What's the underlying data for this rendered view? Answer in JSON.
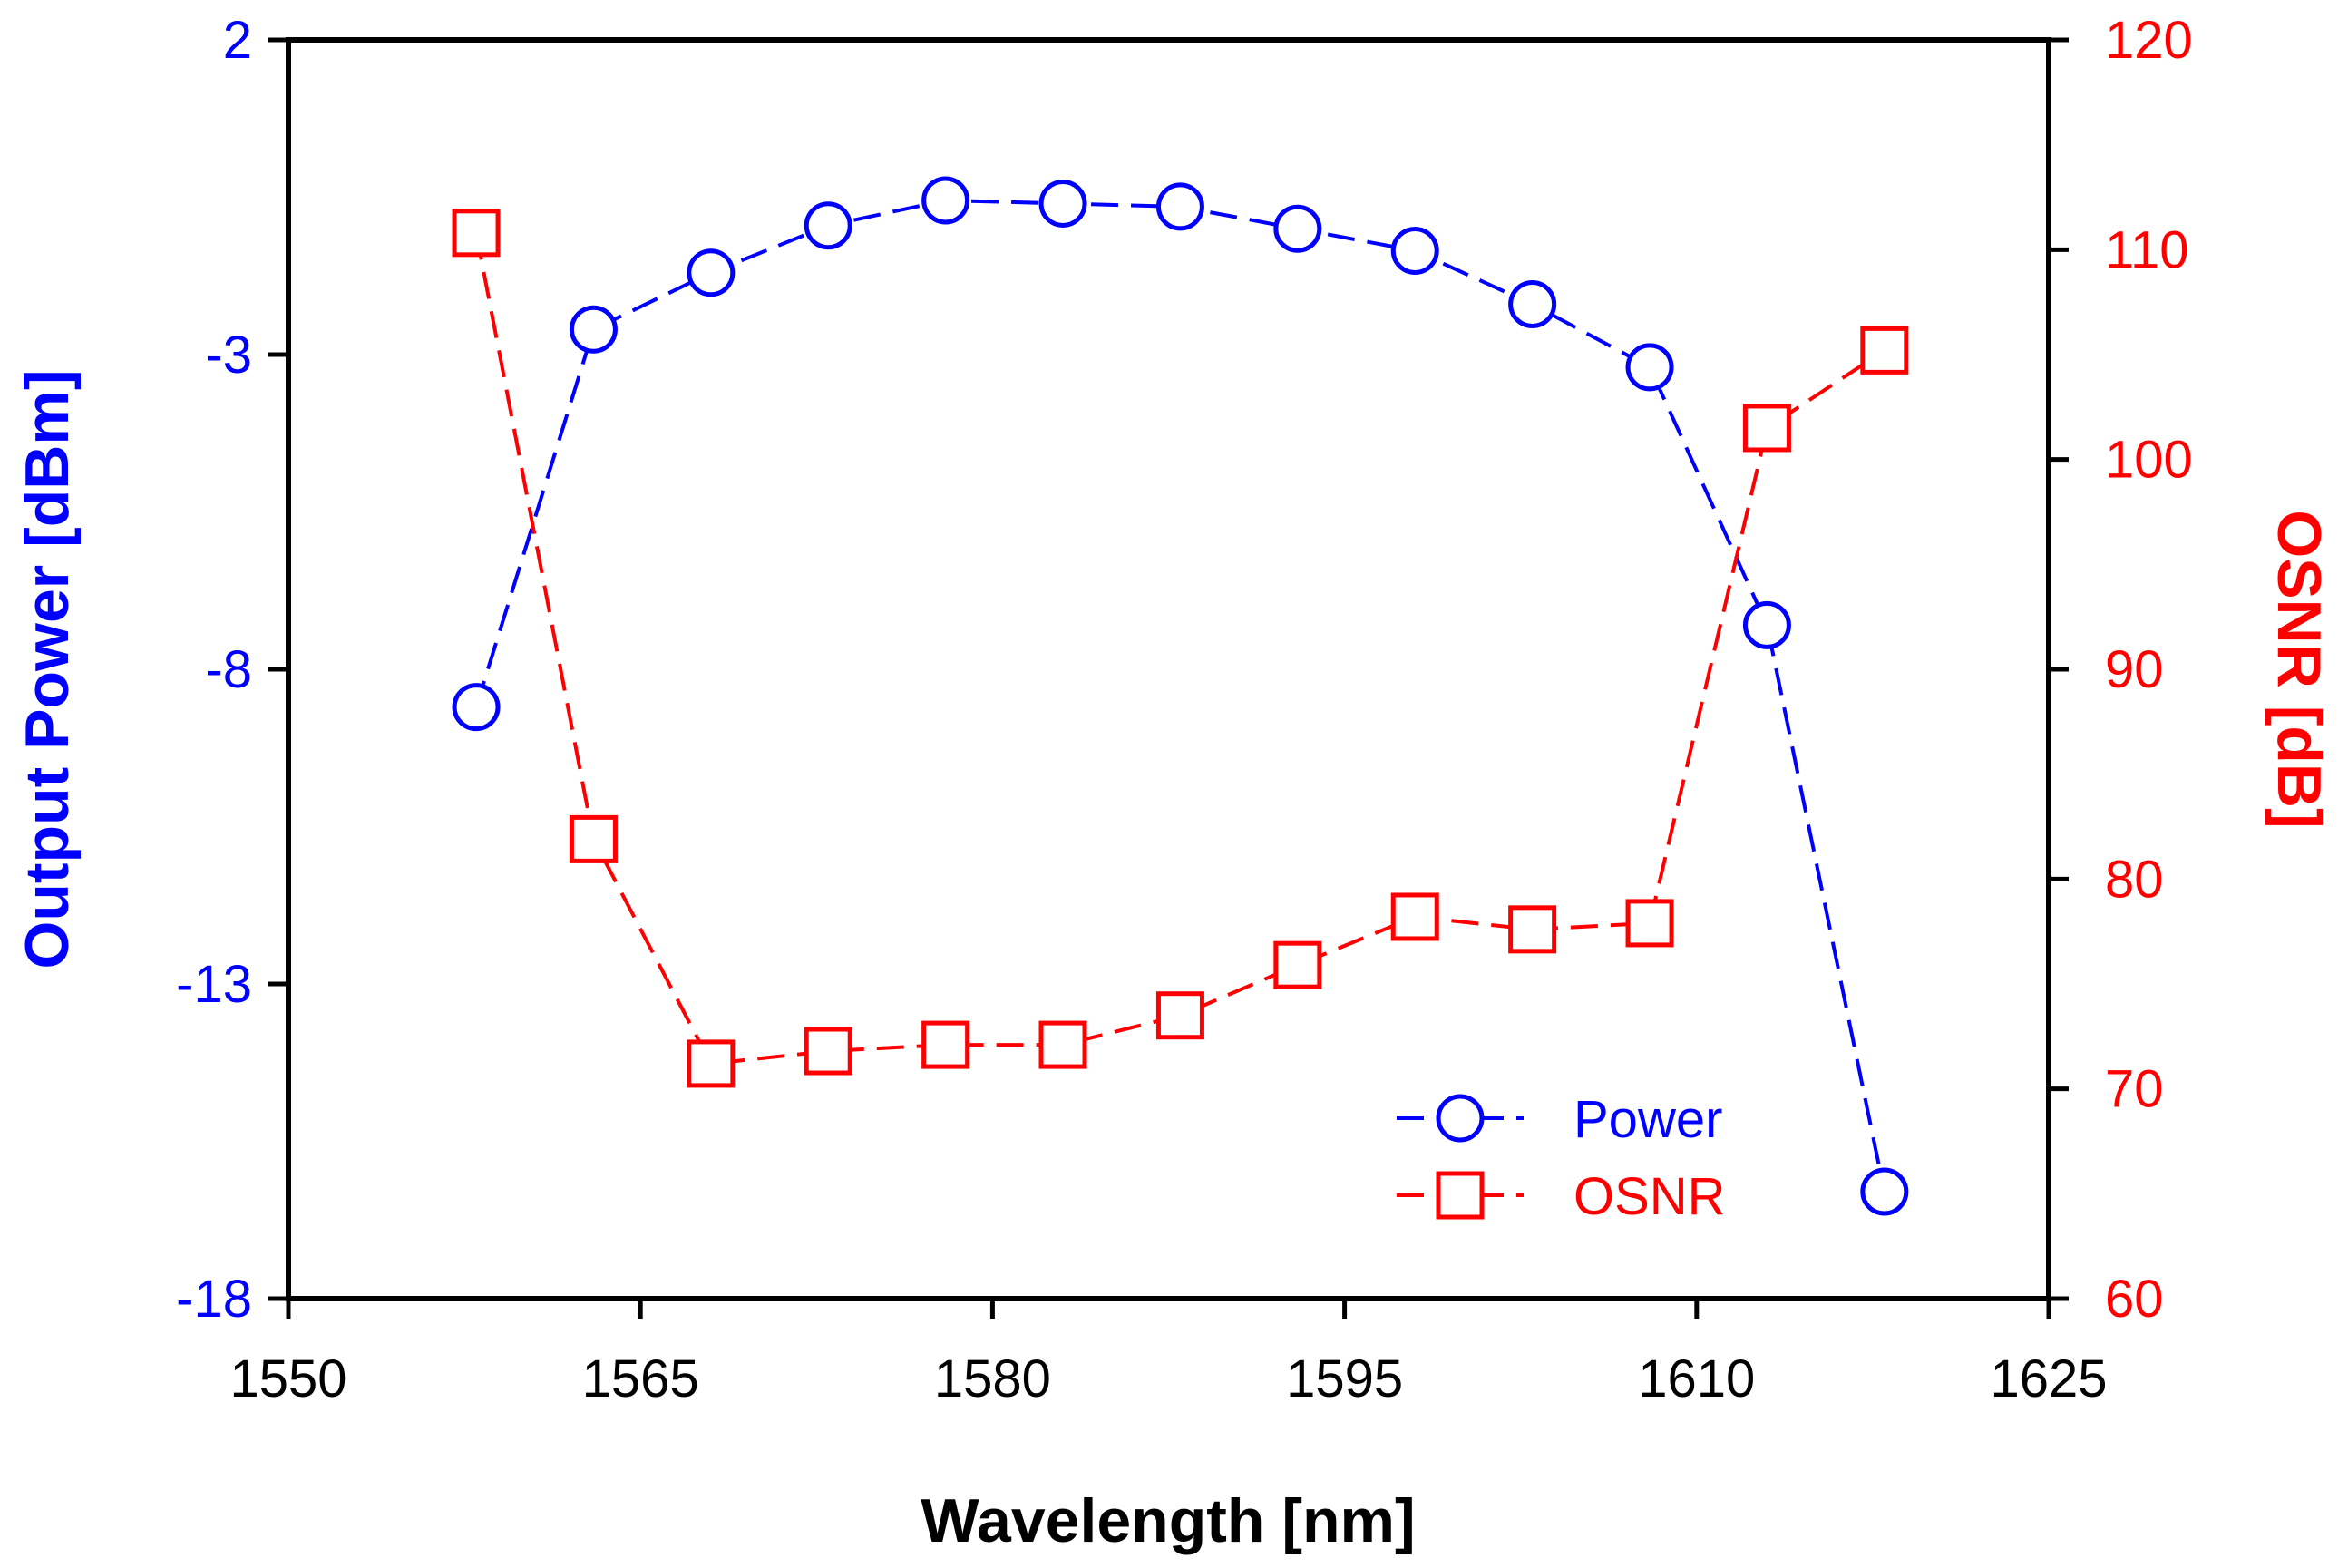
{
  "chart_data": {
    "type": "line",
    "title": "",
    "xlabel": "Wavelength [nm]",
    "ylabel_left": "Output Power [dBm]",
    "ylabel_right": "OSNR [dB]",
    "xlim": [
      1550,
      1625
    ],
    "ylim_left": [
      -18,
      2
    ],
    "ylim_right": [
      60,
      120
    ],
    "xticks": [
      1550,
      1565,
      1580,
      1595,
      1610,
      1625
    ],
    "yticks_left": [
      2,
      -3,
      -8,
      -13,
      -18
    ],
    "yticks_right": [
      120,
      110,
      100,
      90,
      80,
      70,
      60
    ],
    "grid": false,
    "legend_position": "bottom-right",
    "series": [
      {
        "name": "Power",
        "axis": "left",
        "marker": "circle",
        "line_style": "dashed",
        "color": "#0000ff",
        "x": [
          1558,
          1563,
          1568,
          1573,
          1578,
          1583,
          1588,
          1593,
          1598,
          1603,
          1608,
          1613,
          1618
        ],
        "values": [
          -8.6,
          -2.6,
          -1.7,
          -0.95,
          -0.55,
          -0.6,
          -0.65,
          -1.0,
          -1.35,
          -2.2,
          -3.2,
          -7.3,
          -16.3
        ]
      },
      {
        "name": "OSNR",
        "axis": "right",
        "marker": "square",
        "line_style": "dashed",
        "color": "#ff0000",
        "x": [
          1558,
          1563,
          1568,
          1573,
          1578,
          1583,
          1588,
          1593,
          1598,
          1603,
          1608,
          1613,
          1618
        ],
        "values": [
          110.8,
          81.9,
          71.2,
          71.8,
          72.1,
          72.1,
          73.5,
          75.9,
          78.2,
          77.6,
          77.9,
          101.5,
          105.2
        ]
      }
    ]
  },
  "colors": {
    "left_axis": "#0000ff",
    "right_axis": "#ff0000",
    "frame": "#000000"
  }
}
